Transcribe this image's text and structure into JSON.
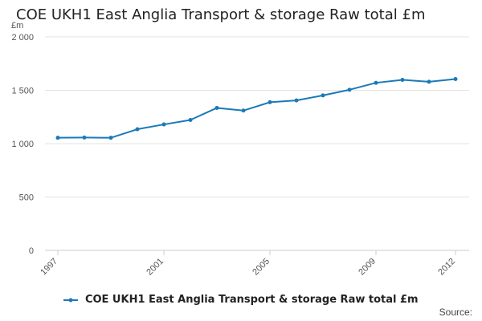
{
  "page": {
    "title": "COE UKH1 East Anglia Transport & storage Raw total £m",
    "unit": "£m",
    "source_label": "Source:"
  },
  "chart_data": {
    "type": "line",
    "title": "COE UKH1 East Anglia Transport & storage Raw total £m",
    "xlabel": "",
    "ylabel": "£m",
    "ylim": [
      0,
      2000
    ],
    "yticks": [
      0,
      500,
      1000,
      1500,
      2000
    ],
    "ytick_labels": [
      "0",
      "500",
      "1 000",
      "1 500",
      "2 000"
    ],
    "xlim": [
      1997,
      2012
    ],
    "xticks": [
      1997,
      2001,
      2005,
      2009,
      2012
    ],
    "xtick_labels": [
      "1997",
      "2001",
      "2005",
      "2009",
      "2012"
    ],
    "grid": true,
    "legend_position": "bottom",
    "series": [
      {
        "name": "COE UKH1 East Anglia Transport & storage Raw total £m",
        "color": "#1a7ab8",
        "x": [
          1997,
          1998,
          1999,
          2000,
          2001,
          2002,
          2003,
          2004,
          2005,
          2006,
          2007,
          2008,
          2009,
          2010,
          2011,
          2012
        ],
        "values": [
          1055,
          1057,
          1055,
          1135,
          1180,
          1222,
          1335,
          1310,
          1388,
          1405,
          1452,
          1505,
          1570,
          1598,
          1580,
          1605
        ]
      }
    ]
  }
}
